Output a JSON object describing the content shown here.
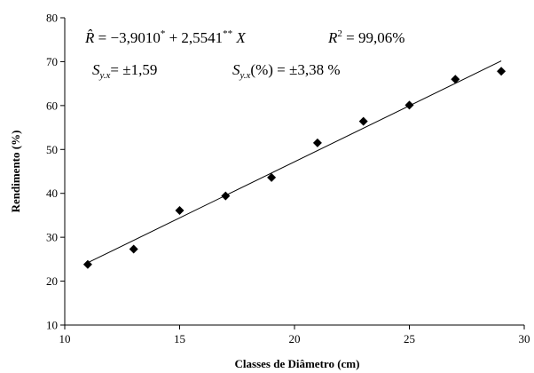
{
  "chart_data": {
    "type": "scatter",
    "xlabel": "Classes de Diâmetro (cm)",
    "ylabel": "Rendimento (%)",
    "xlim": [
      10,
      30
    ],
    "ylim": [
      10,
      80
    ],
    "xticks": [
      10,
      15,
      20,
      25,
      30
    ],
    "yticks": [
      10,
      20,
      30,
      40,
      50,
      60,
      70,
      80
    ],
    "grid": false,
    "marker": "diamond",
    "colors": {
      "points": "#000000",
      "line": "#000000"
    },
    "series": [
      {
        "x": [
          11,
          13,
          15,
          17,
          19,
          21,
          23,
          25,
          27,
          29
        ],
        "y": [
          23.8,
          27.3,
          36.1,
          39.4,
          43.6,
          51.5,
          56.4,
          60.1,
          66.0,
          67.8
        ]
      }
    ],
    "trendline": {
      "type": "linear",
      "intercept": -3.901,
      "slope": 2.5541,
      "x_range": [
        11,
        29
      ]
    },
    "annotations": {
      "equation": {
        "lhs": "R̂",
        "eq": " = −3,9010",
        "sup1": "*",
        "mid": " + 2,5541",
        "sup2": "**",
        "var": " X"
      },
      "r2": {
        "label": "R",
        "exp": "2",
        "value": " = 99,06%"
      },
      "syx": {
        "label": "S",
        "sub": "y.x",
        "value": "= ±1,59"
      },
      "syx_pct": {
        "label": "S",
        "sub": "y.x",
        "value": "(%) = ±3,38 %"
      }
    }
  }
}
